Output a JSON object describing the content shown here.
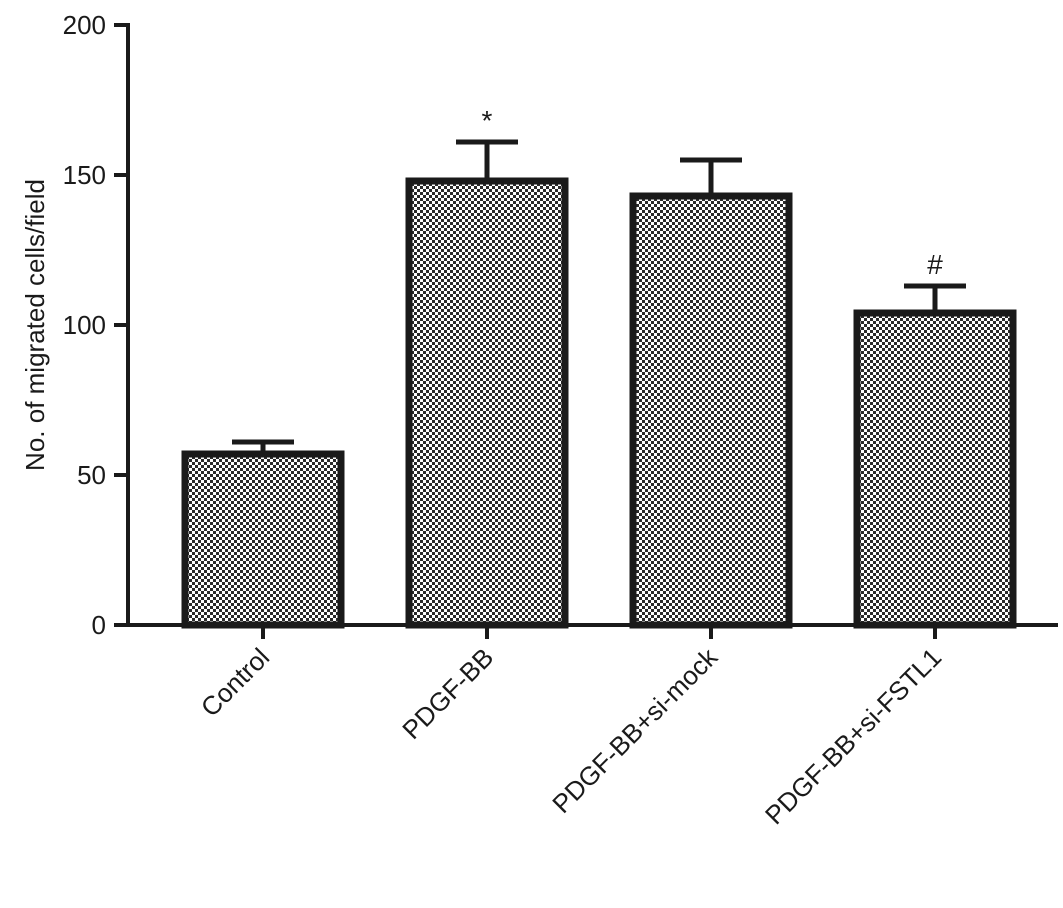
{
  "chart_data": {
    "type": "bar",
    "categories": [
      "Control",
      "PDGF-BB",
      "PDGF-BB+si-mock",
      "PDGF-BB+si-FSTL1"
    ],
    "values": [
      57,
      148,
      143,
      104
    ],
    "errors": [
      4,
      13,
      12,
      9
    ],
    "annotations": [
      "",
      "*",
      "",
      "#"
    ],
    "ylabel": "No. of migrated cells/field",
    "xlabel": "",
    "title": "",
    "ylim": [
      0,
      200
    ],
    "yticks": [
      0,
      50,
      100,
      150,
      200
    ],
    "grid": false,
    "legend": "none",
    "bar_pattern": "checkerboard",
    "colors": {
      "bar_outline": "#1a1a1a",
      "pattern_dark": "#2a2a2a",
      "pattern_light": "#ffffff",
      "axis": "#1a1a1a"
    }
  }
}
